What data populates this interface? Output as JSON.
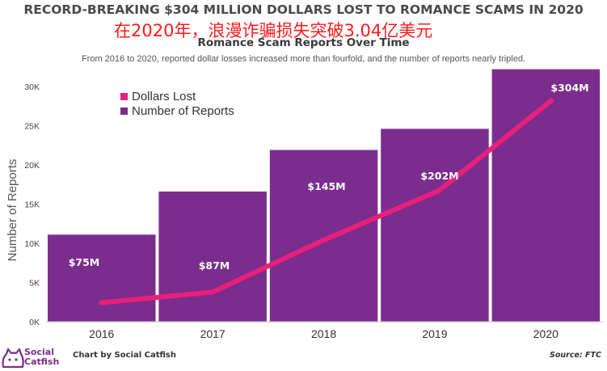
{
  "header": {
    "title": "RECORD-BREAKING $304 MILLION DOLLARS LOST TO ROMANCE SCAMS IN 2020",
    "overlay_text": "在2020年，浪漫诈骗损失突破3.04亿美元",
    "subtitle": "Romance Scam Reports Over Time",
    "description": "From 2016 to 2020, reported dollar losses increased more than fourfold, and the number of reports nearly tripled."
  },
  "chart_data": {
    "type": "bar",
    "categories": [
      "2016",
      "2017",
      "2018",
      "2019",
      "2020"
    ],
    "series": [
      {
        "name": "Number of Reports",
        "type": "bar",
        "values": [
          11100,
          16600,
          21900,
          24600,
          32200
        ],
        "color": "#7b2d8e"
      },
      {
        "name": "Dollars Lost",
        "type": "line",
        "values": [
          75,
          87,
          145,
          202,
          304
        ],
        "labels": [
          "$75M",
          "$87M",
          "$145M",
          "$202M",
          "$304M"
        ],
        "color": "#e8207a"
      }
    ],
    "ylabel": "Number of Reports",
    "yticks": [
      "0K",
      "5K",
      "10K",
      "15K",
      "20K",
      "25K",
      "30K"
    ],
    "ylim": [
      0,
      32200
    ],
    "legend": [
      "Dollars Lost",
      "Number of Reports"
    ],
    "legend_position": "top-left",
    "grid": false
  },
  "footer": {
    "brand_line1": "Social",
    "brand_line2": "Catfish",
    "credit": "Chart by Social Catfish",
    "source": "Source: FTC"
  },
  "colors": {
    "bar": "#7b2d8e",
    "line": "#e8207a",
    "title": "#4a4a4a",
    "overlay": "#ff1a1a"
  }
}
